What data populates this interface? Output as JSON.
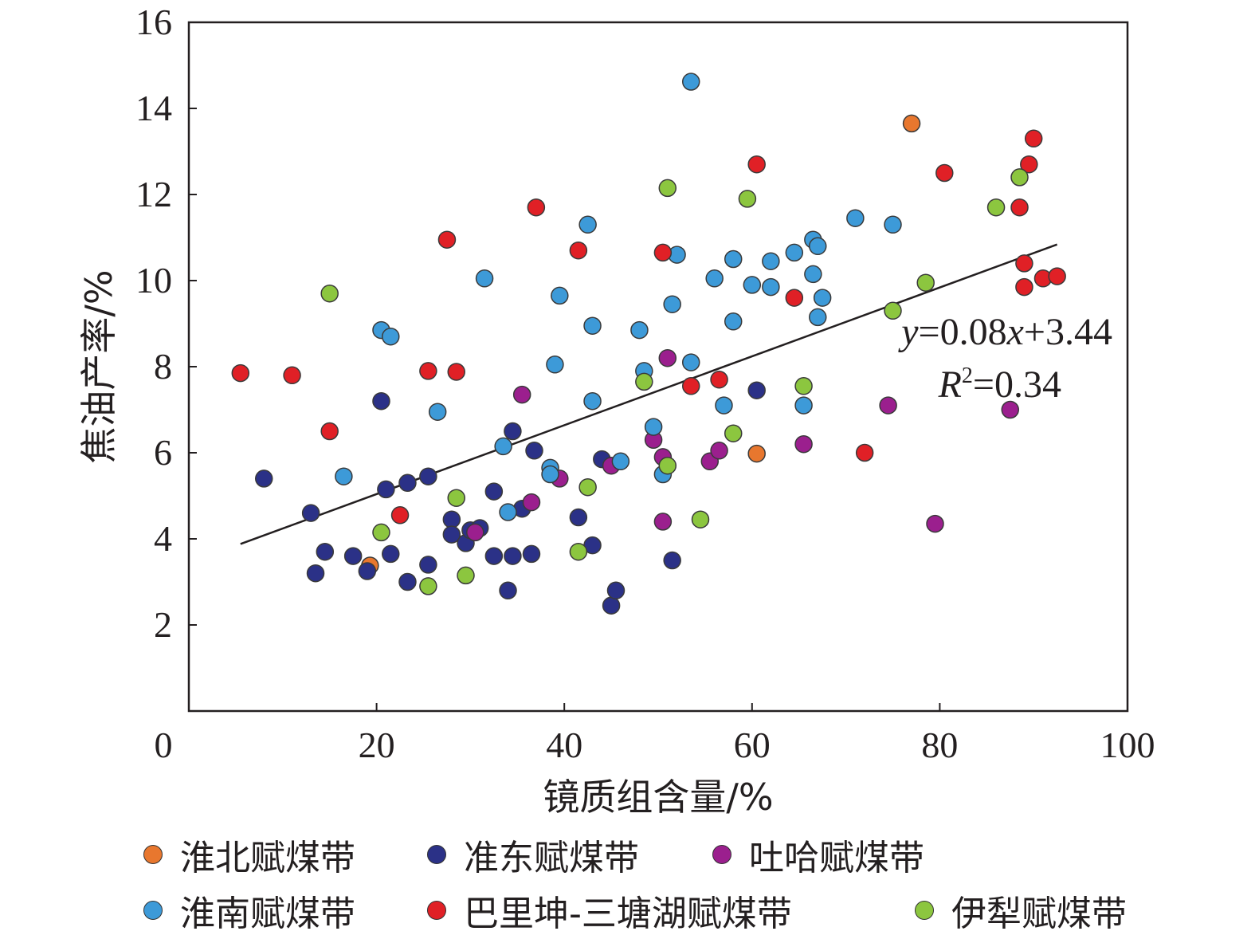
{
  "chart_data": {
    "type": "scatter",
    "xlabel": "镜质组含量/%",
    "ylabel": "焦油产率/%",
    "xlim": [
      0,
      100
    ],
    "ylim": [
      0,
      16
    ],
    "x_ticks": [
      "0",
      "20",
      "40",
      "60",
      "80",
      "100"
    ],
    "y_ticks": [
      "2",
      "4",
      "6",
      "8",
      "10",
      "12",
      "14",
      "16"
    ],
    "grid": false,
    "legend_position": "bottom",
    "annotation": {
      "equation_y": "y",
      "equation_rest": "=0.08",
      "equation_x": "x",
      "equation_end": "+3.44",
      "r2_r": "R",
      "r2_sup": "2",
      "r2_rest": "=0.34"
    },
    "trendline": {
      "slope": 0.08,
      "intercept": 3.44,
      "x_range": [
        5.5,
        92.5
      ],
      "color": "#231f20"
    },
    "series": [
      {
        "name": "淮北赋煤带",
        "color": "#e8772e",
        "points": [
          [
            77,
            13.65
          ],
          [
            60.5,
            5.98
          ],
          [
            19.3,
            3.38
          ]
        ]
      },
      {
        "name": "准东赋煤带",
        "color": "#2b3187",
        "points": [
          [
            8,
            5.4
          ],
          [
            13,
            4.6
          ],
          [
            13.5,
            3.2
          ],
          [
            14.5,
            3.7
          ],
          [
            17.5,
            3.6
          ],
          [
            19,
            3.25
          ],
          [
            20.5,
            7.2
          ],
          [
            21,
            5.15
          ],
          [
            21.5,
            3.65
          ],
          [
            23.3,
            5.3
          ],
          [
            23.3,
            3.0
          ],
          [
            25.5,
            5.45
          ],
          [
            25.5,
            3.4
          ],
          [
            28,
            4.45
          ],
          [
            28,
            4.1
          ],
          [
            29.5,
            3.9
          ],
          [
            30,
            4.2
          ],
          [
            31,
            4.25
          ],
          [
            32.5,
            5.1
          ],
          [
            32.5,
            3.6
          ],
          [
            34,
            2.8
          ],
          [
            34.5,
            6.5
          ],
          [
            34.5,
            3.6
          ],
          [
            35.5,
            4.7
          ],
          [
            36.5,
            3.65
          ],
          [
            36.8,
            6.05
          ],
          [
            41.5,
            4.5
          ],
          [
            43,
            3.85
          ],
          [
            44,
            5.85
          ],
          [
            45,
            2.45
          ],
          [
            45.5,
            2.8
          ],
          [
            51.5,
            3.5
          ],
          [
            60.5,
            7.45
          ]
        ]
      },
      {
        "name": "吐哈赋煤带",
        "color": "#9b1f8e",
        "points": [
          [
            30.5,
            4.15
          ],
          [
            35.5,
            7.35
          ],
          [
            36.5,
            4.85
          ],
          [
            39.5,
            5.4
          ],
          [
            45,
            5.7
          ],
          [
            49.5,
            6.3
          ],
          [
            50.5,
            5.9
          ],
          [
            50.5,
            4.4
          ],
          [
            51,
            8.2
          ],
          [
            55.5,
            5.8
          ],
          [
            56.5,
            6.05
          ],
          [
            65.5,
            6.2
          ],
          [
            74.5,
            7.1
          ],
          [
            79.5,
            4.35
          ],
          [
            87.5,
            7.0
          ]
        ]
      },
      {
        "name": "淮南赋煤带",
        "color": "#3d9ad8",
        "points": [
          [
            16.5,
            5.45
          ],
          [
            20.5,
            8.85
          ],
          [
            21.5,
            8.7
          ],
          [
            26.5,
            6.95
          ],
          [
            31.5,
            10.05
          ],
          [
            33.5,
            6.15
          ],
          [
            34,
            4.62
          ],
          [
            38.5,
            5.65
          ],
          [
            38.5,
            5.5
          ],
          [
            39,
            8.05
          ],
          [
            39.5,
            9.65
          ],
          [
            42.5,
            11.3
          ],
          [
            43,
            8.95
          ],
          [
            43,
            7.2
          ],
          [
            46,
            5.8
          ],
          [
            48,
            8.85
          ],
          [
            48.5,
            7.9
          ],
          [
            49.5,
            6.6
          ],
          [
            50.5,
            5.5
          ],
          [
            51.5,
            9.45
          ],
          [
            52,
            10.6
          ],
          [
            53.5,
            8.1
          ],
          [
            53.5,
            14.62
          ],
          [
            56,
            10.05
          ],
          [
            57,
            7.1
          ],
          [
            58,
            10.5
          ],
          [
            58,
            9.05
          ],
          [
            60,
            9.9
          ],
          [
            62,
            9.85
          ],
          [
            62,
            10.45
          ],
          [
            64.5,
            10.65
          ],
          [
            65.5,
            7.1
          ],
          [
            66.5,
            10.95
          ],
          [
            66.5,
            10.15
          ],
          [
            67,
            10.8
          ],
          [
            67,
            9.15
          ],
          [
            67.5,
            9.6
          ],
          [
            71,
            11.45
          ],
          [
            75,
            11.3
          ]
        ]
      },
      {
        "name": "巴里坤-三塘湖赋煤带",
        "color": "#e02026",
        "points": [
          [
            5.5,
            7.85
          ],
          [
            11,
            7.8
          ],
          [
            15,
            6.5
          ],
          [
            22.5,
            4.55
          ],
          [
            25.5,
            7.9
          ],
          [
            27.5,
            10.95
          ],
          [
            28.5,
            7.88
          ],
          [
            37,
            11.7
          ],
          [
            41.5,
            10.7
          ],
          [
            50.5,
            10.65
          ],
          [
            53.5,
            7.55
          ],
          [
            56.5,
            7.7
          ],
          [
            60.5,
            12.7
          ],
          [
            64.5,
            9.6
          ],
          [
            72,
            6.0
          ],
          [
            80.5,
            12.5
          ],
          [
            88.5,
            11.7
          ],
          [
            89,
            10.4
          ],
          [
            89,
            9.85
          ],
          [
            89.5,
            12.7
          ],
          [
            90,
            13.3
          ],
          [
            91,
            10.05
          ],
          [
            92.5,
            10.1
          ]
        ]
      },
      {
        "name": "伊犁赋煤带",
        "color": "#8cc63f",
        "points": [
          [
            15,
            9.7
          ],
          [
            20.5,
            4.15
          ],
          [
            25.5,
            2.9
          ],
          [
            28.5,
            4.95
          ],
          [
            29.5,
            3.15
          ],
          [
            41.5,
            3.7
          ],
          [
            42.5,
            5.2
          ],
          [
            48.5,
            7.65
          ],
          [
            51,
            12.15
          ],
          [
            51,
            5.7
          ],
          [
            54.5,
            4.45
          ],
          [
            58,
            6.45
          ],
          [
            59.5,
            11.9
          ],
          [
            65.5,
            7.55
          ],
          [
            75,
            9.3
          ],
          [
            78.5,
            9.95
          ],
          [
            86,
            11.7
          ],
          [
            88.5,
            12.4
          ]
        ]
      }
    ]
  }
}
